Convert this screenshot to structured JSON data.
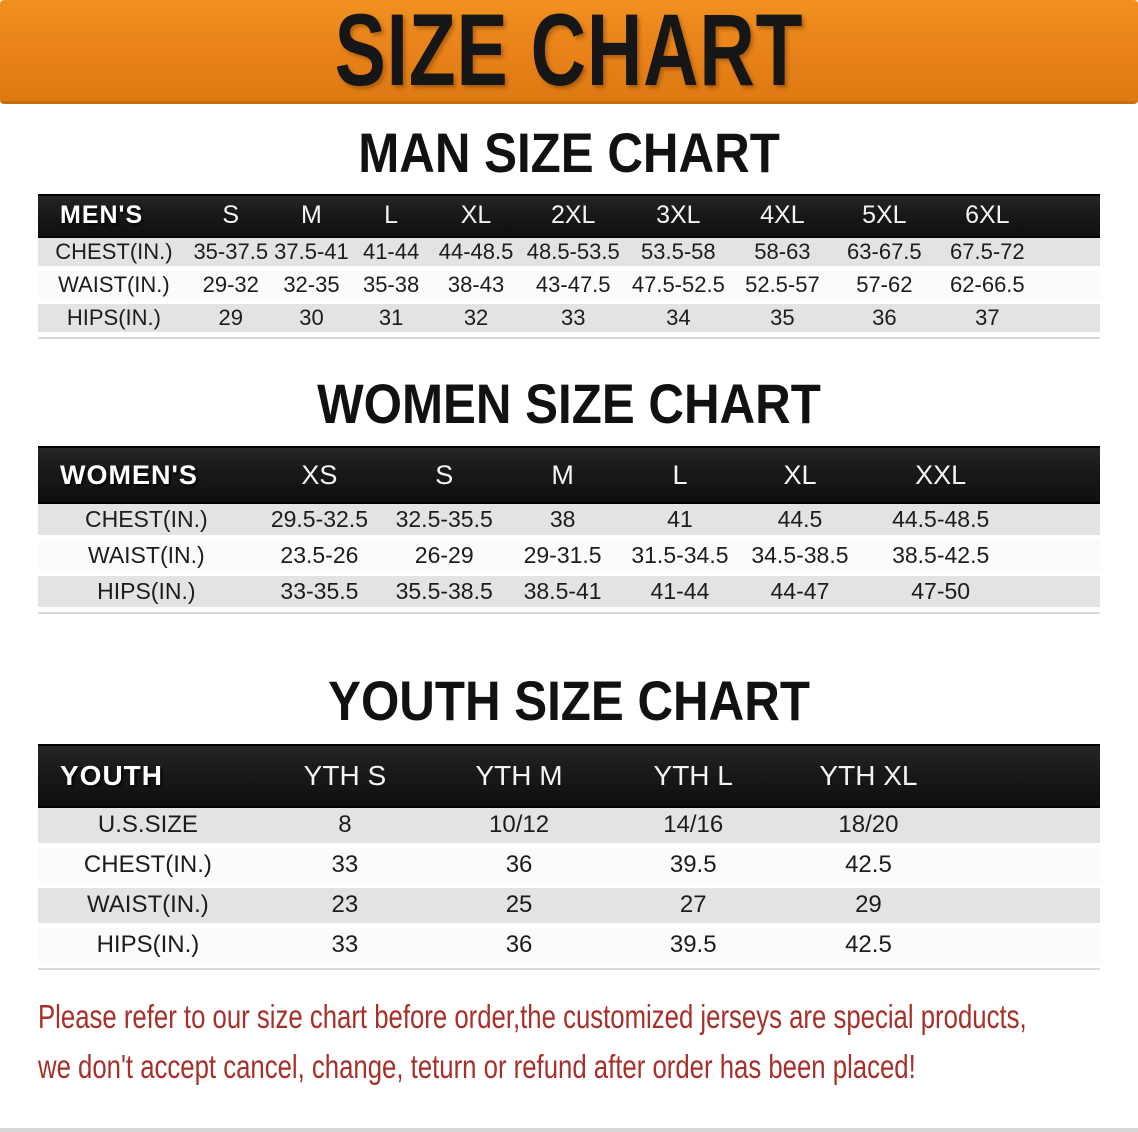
{
  "banner": {
    "title": "SIZE CHART"
  },
  "sections": [
    {
      "id": "men",
      "heading": "MAN SIZE CHART",
      "table": {
        "header_label": "MEN'S",
        "sizes": [
          "S",
          "M",
          "L",
          "XL",
          "2XL",
          "3XL",
          "4XL",
          "5XL",
          "6XL"
        ],
        "rows": [
          {
            "label": "CHEST(IN.)",
            "values": [
              "35-37.5",
              "37.5-41",
              "41-44",
              "44-48.5",
              "48.5-53.5",
              "53.5-58",
              "58-63",
              "63-67.5",
              "67.5-72"
            ]
          },
          {
            "label": "WAIST(IN.)",
            "values": [
              "29-32",
              "32-35",
              "35-38",
              "38-43",
              "43-47.5",
              "47.5-52.5",
              "52.5-57",
              "57-62",
              "62-66.5"
            ]
          },
          {
            "label": "HIPS(IN.)",
            "values": [
              "29",
              "30",
              "31",
              "32",
              "33",
              "34",
              "35",
              "36",
              "37"
            ]
          }
        ]
      }
    },
    {
      "id": "women",
      "heading": "WOMEN SIZE CHART",
      "table": {
        "header_label": "WOMEN'S",
        "sizes": [
          "XS",
          "S",
          "M",
          "L",
          "XL",
          "XXL"
        ],
        "rows": [
          {
            "label": "CHEST(IN.)",
            "values": [
              "29.5-32.5",
              "32.5-35.5",
              "38",
              "41",
              "44.5",
              "44.5-48.5"
            ]
          },
          {
            "label": "WAIST(IN.)",
            "values": [
              "23.5-26",
              "26-29",
              "29-31.5",
              "31.5-34.5",
              "34.5-38.5",
              "38.5-42.5"
            ]
          },
          {
            "label": "HIPS(IN.)",
            "values": [
              "33-35.5",
              "35.5-38.5",
              "38.5-41",
              "41-44",
              "44-47",
              "47-50"
            ]
          }
        ]
      }
    },
    {
      "id": "youth",
      "heading": "YOUTH SIZE CHART",
      "table": {
        "header_label": "YOUTH",
        "sizes": [
          "YTH S",
          "YTH M",
          "YTH L",
          "YTH XL"
        ],
        "rows": [
          {
            "label": "U.S.SIZE",
            "values": [
              "8",
              "10/12",
              "14/16",
              "18/20"
            ]
          },
          {
            "label": "CHEST(IN.)",
            "values": [
              "33",
              "36",
              "39.5",
              "42.5"
            ]
          },
          {
            "label": "WAIST(IN.)",
            "values": [
              "23",
              "25",
              "27",
              "29"
            ]
          },
          {
            "label": "HIPS(IN.)",
            "values": [
              "33",
              "36",
              "39.5",
              "42.5"
            ]
          }
        ]
      }
    }
  ],
  "footer_note": {
    "lines": [
      "Please refer to our size chart before order,the customized jerseys are special products,",
      "we don't accept cancel, change, teturn or refund after order has been placed!"
    ]
  },
  "colors": {
    "banner_orange": "#E8811A",
    "header_bar_black": "#1A1A1A",
    "row_gray": "#E3E3E3",
    "row_white": "#FBFBFB",
    "heading_black": "#111111",
    "note_red": "#A8302A"
  }
}
